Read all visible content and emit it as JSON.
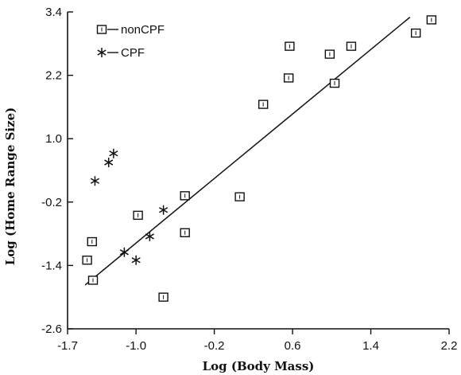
{
  "chart_data": {
    "type": "scatter",
    "xlabel": "Log (Body Mass)",
    "ylabel": "Log (Home Range Size)",
    "xlim": [
      -1.7,
      2.2
    ],
    "ylim": [
      -2.6,
      3.4
    ],
    "x_ticks": [
      -1.7,
      -1.0,
      -0.2,
      0.6,
      1.4,
      2.2
    ],
    "x_tick_labels": [
      "-1.7",
      "-1.0",
      "-0.2",
      "0.6",
      "1.4",
      "2.2"
    ],
    "y_ticks": [
      -2.6,
      -1.4,
      -0.2,
      1.0,
      2.2,
      3.4
    ],
    "y_tick_labels": [
      "-2.6",
      "-1.4",
      "-0.2",
      "1.0",
      "2.2",
      "3.4"
    ],
    "legend_position": "top-left",
    "grid": false,
    "series": [
      {
        "name": "nonCPF",
        "marker": "square",
        "points": [
          {
            "x": -1.5,
            "y": -1.3
          },
          {
            "x": -1.45,
            "y": -0.95
          },
          {
            "x": -1.44,
            "y": -1.68
          },
          {
            "x": -0.98,
            "y": -0.45
          },
          {
            "x": -0.72,
            "y": -2.0
          },
          {
            "x": -0.5,
            "y": -0.08
          },
          {
            "x": -0.5,
            "y": -0.78
          },
          {
            "x": 0.06,
            "y": -0.1
          },
          {
            "x": 0.3,
            "y": 1.65
          },
          {
            "x": 0.56,
            "y": 2.15
          },
          {
            "x": 0.57,
            "y": 2.75
          },
          {
            "x": 0.98,
            "y": 2.6
          },
          {
            "x": 1.03,
            "y": 2.05
          },
          {
            "x": 1.2,
            "y": 2.75
          },
          {
            "x": 1.86,
            "y": 3.0
          },
          {
            "x": 2.02,
            "y": 3.25
          }
        ]
      },
      {
        "name": "CPF",
        "marker": "star",
        "points": [
          {
            "x": -1.42,
            "y": 0.2
          },
          {
            "x": -1.28,
            "y": 0.55
          },
          {
            "x": -1.23,
            "y": 0.72
          },
          {
            "x": -1.12,
            "y": -1.15
          },
          {
            "x": -1.0,
            "y": -1.3
          },
          {
            "x": -0.86,
            "y": -0.85
          },
          {
            "x": -0.72,
            "y": -0.35
          }
        ]
      }
    ],
    "fit_line": {
      "x": [
        -1.52,
        1.8
      ],
      "y": [
        -1.77,
        3.3
      ]
    }
  }
}
